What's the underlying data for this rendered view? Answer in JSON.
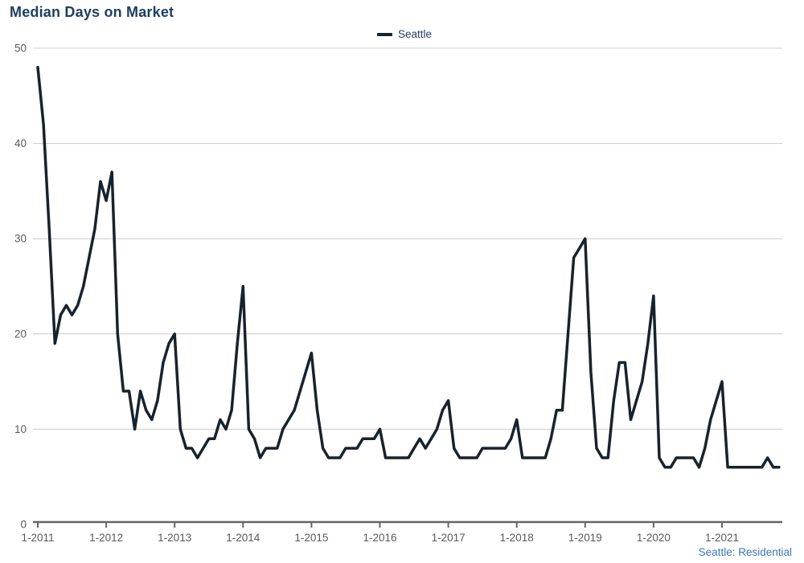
{
  "page": {
    "title": "Median Days on Market",
    "footer": "Seattle: Residential"
  },
  "legend": {
    "swatch": "line-dash",
    "label": "Seattle"
  },
  "colors": {
    "series_line": "#17232c",
    "title_text": "#1e3e5f",
    "legend_text": "#1e3e5f",
    "axis_text": "#595959",
    "gridline": "#cccccc",
    "axis_line": "#666666",
    "footer_text": "#3a76b5",
    "background": "#ffffff"
  },
  "chart_data": {
    "type": "line",
    "title": "Median Days on Market",
    "xlabel": "",
    "ylabel": "",
    "ylim": [
      0,
      50
    ],
    "yticks": [
      0,
      10,
      20,
      30,
      40,
      50
    ],
    "x_tick_labels": [
      "1-2011",
      "1-2012",
      "1-2013",
      "1-2014",
      "1-2015",
      "1-2016",
      "1-2017",
      "1-2018",
      "1-2019",
      "1-2020",
      "1-2021"
    ],
    "grid": "horizontal",
    "legend_position": "top-center",
    "frequency": "monthly",
    "start": "1-2011",
    "end": "11-2021",
    "footer": "Seattle: Residential",
    "series": [
      {
        "name": "Seattle",
        "color": "#17232c",
        "values": [
          48,
          42,
          31,
          19,
          22,
          23,
          22,
          23,
          25,
          28,
          31,
          36,
          34,
          37,
          20,
          14,
          14,
          10,
          14,
          12,
          11,
          13,
          17,
          19,
          20,
          10,
          8,
          8,
          7,
          8,
          9,
          9,
          11,
          10,
          12,
          19,
          25,
          10,
          9,
          7,
          8,
          8,
          8,
          10,
          11,
          12,
          14,
          16,
          18,
          12,
          8,
          7,
          7,
          7,
          8,
          8,
          8,
          9,
          9,
          9,
          10,
          7,
          7,
          7,
          7,
          7,
          8,
          9,
          8,
          9,
          10,
          12,
          13,
          8,
          7,
          7,
          7,
          7,
          8,
          8,
          8,
          8,
          8,
          9,
          11,
          7,
          7,
          7,
          7,
          7,
          9,
          12,
          12,
          20,
          28,
          29,
          30,
          16,
          8,
          7,
          7,
          13,
          17,
          17,
          11,
          13,
          15,
          19,
          24,
          7,
          6,
          6,
          7,
          7,
          7,
          7,
          6,
          8,
          11,
          13,
          15,
          6,
          6,
          6,
          6,
          6,
          6,
          6,
          7,
          6,
          6
        ]
      }
    ]
  }
}
